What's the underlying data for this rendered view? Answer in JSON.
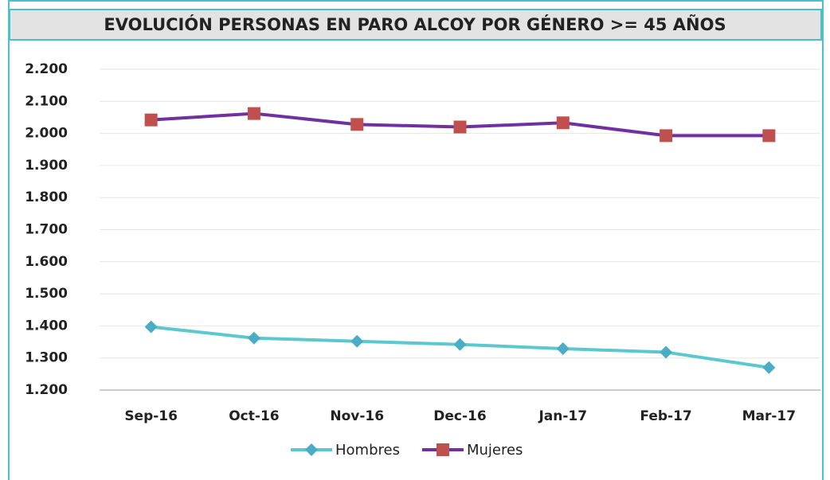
{
  "chart_data": {
    "type": "line",
    "title": "EVOLUCIÓN PERSONAS EN PARO ALCOY POR GÉNERO >= 45 AÑOS",
    "categories": [
      "Sep-16",
      "Oct-16",
      "Nov-16",
      "Dec-16",
      "Jan-17",
      "Feb-17",
      "Mar-17"
    ],
    "series": [
      {
        "name": "Hombres",
        "color": "#5bc8d0",
        "marker": "diamond",
        "marker_color": "#4bacc6",
        "values": [
          1397,
          1362,
          1352,
          1342,
          1329,
          1318,
          1270
        ]
      },
      {
        "name": "Mujeres",
        "color": "#7030a0",
        "marker": "square",
        "marker_color": "#c0504d",
        "values": [
          2042,
          2062,
          2028,
          2020,
          2033,
          1993,
          1993
        ]
      }
    ],
    "ylim": [
      1200,
      2200
    ],
    "yticks": [
      {
        "value": 1200,
        "label": "1.200"
      },
      {
        "value": 1300,
        "label": "1.300"
      },
      {
        "value": 1400,
        "label": "1.400"
      },
      {
        "value": 1500,
        "label": "1.500"
      },
      {
        "value": 1600,
        "label": "1.600"
      },
      {
        "value": 1700,
        "label": "1.700"
      },
      {
        "value": 1800,
        "label": "1.800"
      },
      {
        "value": 1900,
        "label": "1.900"
      },
      {
        "value": 2000,
        "label": "2.000"
      },
      {
        "value": 2100,
        "label": "2.100"
      },
      {
        "value": 2200,
        "label": "2.200"
      }
    ],
    "grid": true,
    "legend": "bottom"
  }
}
